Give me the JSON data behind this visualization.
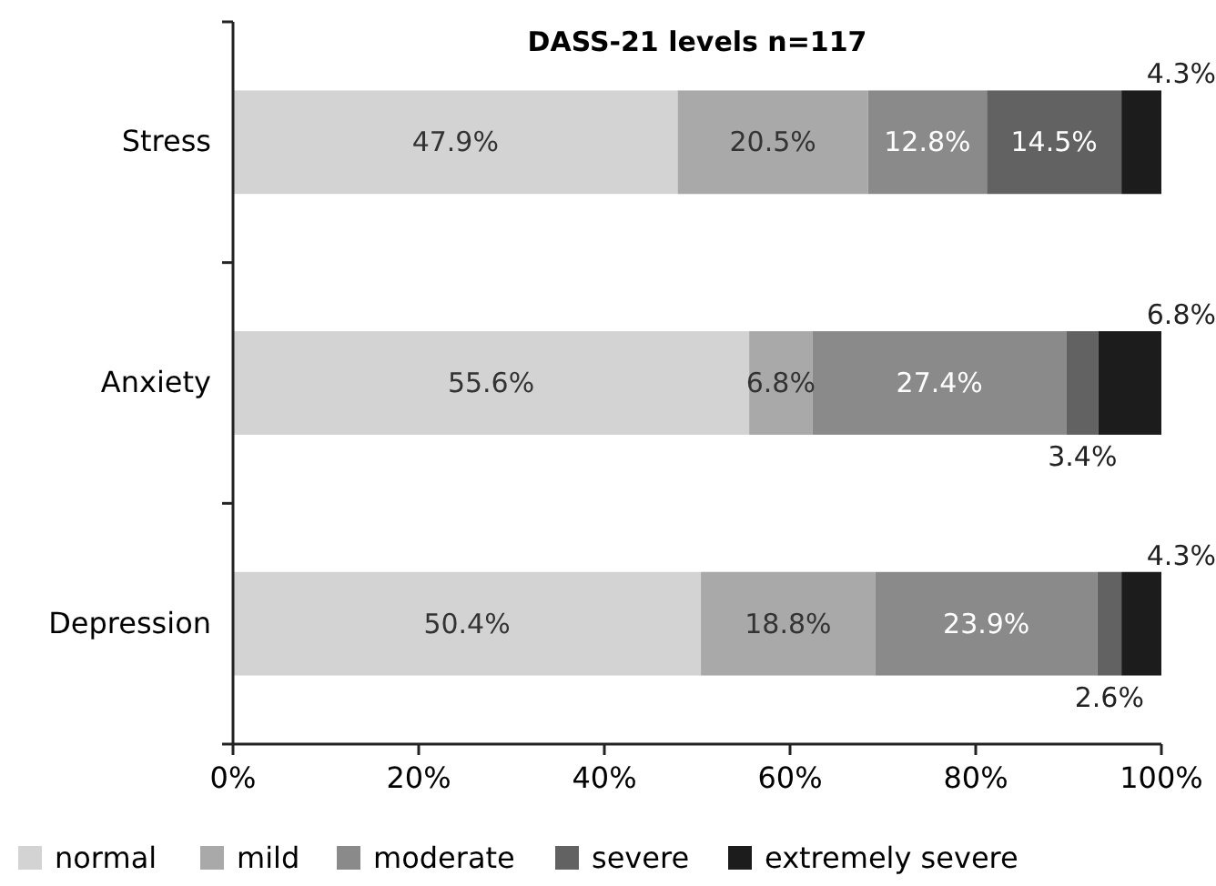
{
  "chart_data": {
    "type": "bar",
    "orientation": "horizontal",
    "stacked": true,
    "title": "DASS-21 levels n=117",
    "categories": [
      "Stress",
      "Anxiety",
      "Depression"
    ],
    "xlim": [
      0,
      100
    ],
    "xticks": [
      {
        "value": 0,
        "label": "0%"
      },
      {
        "value": 20,
        "label": "20%"
      },
      {
        "value": 40,
        "label": "40%"
      },
      {
        "value": 60,
        "label": "60%"
      },
      {
        "value": 80,
        "label": "80%"
      },
      {
        "value": 100,
        "label": "100%"
      }
    ],
    "legend": "bottom",
    "grid": false,
    "series": [
      {
        "name": "normal",
        "color": "#d3d3d3",
        "values": [
          47.9,
          55.6,
          50.4
        ],
        "value_labels": [
          "47.9%",
          "55.6%",
          "50.4%"
        ]
      },
      {
        "name": "mild",
        "color": "#a9a9a9",
        "values": [
          20.5,
          6.8,
          18.8
        ],
        "value_labels": [
          "20.5%",
          "6.8%",
          "18.8%"
        ]
      },
      {
        "name": "moderate",
        "color": "#8a8a8a",
        "values": [
          12.8,
          27.4,
          23.9
        ],
        "value_labels": [
          "12.8%",
          "27.4%",
          "23.9%"
        ]
      },
      {
        "name": "severe",
        "color": "#626262",
        "values": [
          14.5,
          3.4,
          2.6
        ],
        "value_labels": [
          "14.5%",
          "3.4%",
          "2.6%"
        ]
      },
      {
        "name": "extremely severe",
        "color": "#1c1c1c",
        "values": [
          4.3,
          6.8,
          4.3
        ],
        "value_labels": [
          "4.3%",
          "6.8%",
          "4.3%"
        ]
      }
    ]
  }
}
